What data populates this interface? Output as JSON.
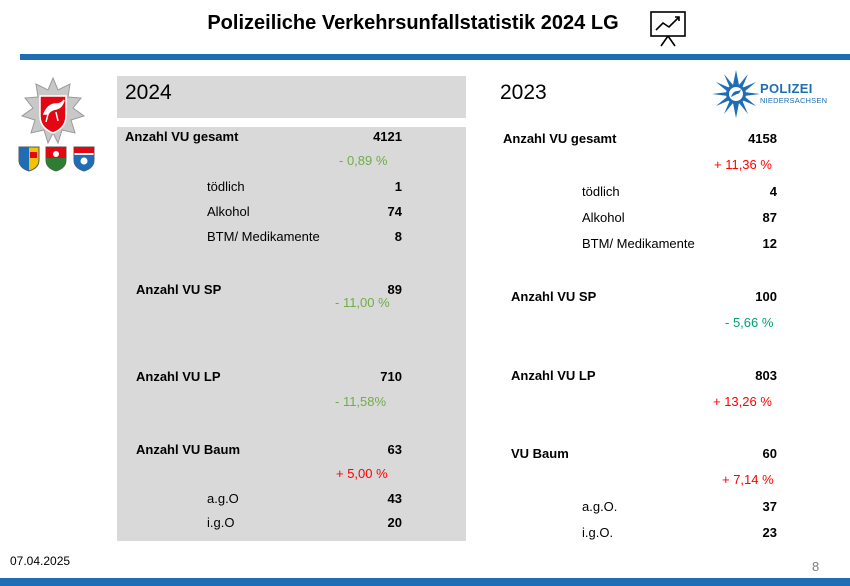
{
  "header": {
    "title": "Polizeiliche Verkehrsunfallstatistik 2024 LG"
  },
  "logo": {
    "line1": "POLIZEI",
    "line2": "NIEDERSACHSEN"
  },
  "col2024": {
    "year": "2024",
    "total_label": "Anzahl VU gesamt",
    "total_value": "4121",
    "total_change": "- 0,89 %",
    "fatal_label": "tödlich",
    "fatal_value": "1",
    "alcohol_label": "Alkohol",
    "alcohol_value": "74",
    "drugs_label": "BTM/ Medikamente",
    "drugs_value": "8",
    "sp_label": "Anzahl VU SP",
    "sp_value": "89",
    "sp_change": "- 11,00 %",
    "lp_label": "Anzahl VU LP",
    "lp_value": "710",
    "lp_change": "- 11,58%",
    "tree_label": "Anzahl VU Baum",
    "tree_value": "63",
    "tree_change": "+ 5,00 %",
    "ago_label": "a.g.O",
    "ago_value": "43",
    "igo_label": "i.g.O",
    "igo_value": "20"
  },
  "col2023": {
    "year": "2023",
    "total_label": "Anzahl VU gesamt",
    "total_value": "4158",
    "total_change": "+ 11,36 %",
    "fatal_label": "tödlich",
    "fatal_value": "4",
    "alcohol_label": "Alkohol",
    "alcohol_value": "87",
    "drugs_label": "BTM/ Medikamente",
    "drugs_value": "12",
    "sp_label": "Anzahl VU SP",
    "sp_value": "100",
    "sp_change": "- 5,66 %",
    "lp_label": "Anzahl VU LP",
    "lp_value": "803",
    "lp_change": "+ 13,26 %",
    "tree_label": "VU Baum",
    "tree_value": "60",
    "tree_change": "+ 7,14 %",
    "ago_label": "a.g.O.",
    "ago_value": "37",
    "igo_label": "i.g.O.",
    "igo_value": "23"
  },
  "footer": {
    "date": "07.04.2025",
    "page": "8"
  },
  "colors": {
    "accent_blue": "#1f6eb5",
    "panel_gray": "#d9d9d9",
    "decrease_green": "#70ad47",
    "increase_red": "#ff0000"
  }
}
